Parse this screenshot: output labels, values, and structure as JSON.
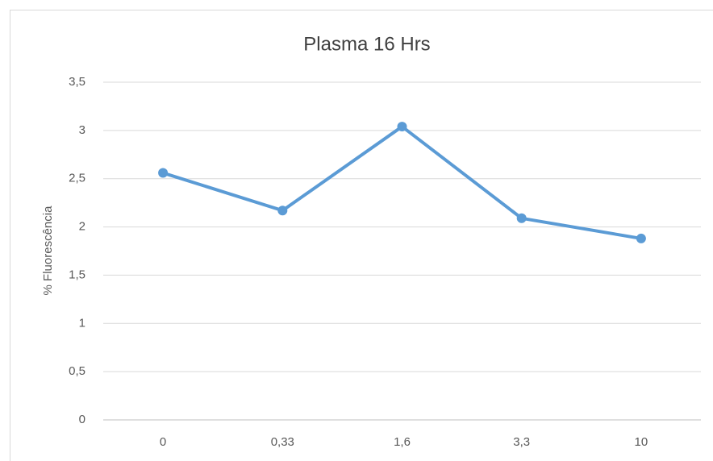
{
  "chart_data": {
    "type": "line",
    "title": "Plasma 16 Hrs",
    "y_label": "% Fluorescência",
    "categories": [
      "0",
      "0,33",
      "1,6",
      "3,3",
      "10"
    ],
    "values": [
      2.56,
      2.17,
      3.04,
      2.09,
      1.88
    ],
    "color": "#5b9bd5",
    "ylim": [
      0,
      3.5
    ],
    "yticks": [
      0,
      {
        "value": 0.5,
        "label": "0,5"
      },
      1,
      {
        "value": 1.5,
        "label": "1,5"
      },
      2,
      {
        "value": 2.5,
        "label": "2,5"
      },
      3,
      {
        "value": 3.5,
        "label": "3,5"
      }
    ],
    "grid": true
  }
}
